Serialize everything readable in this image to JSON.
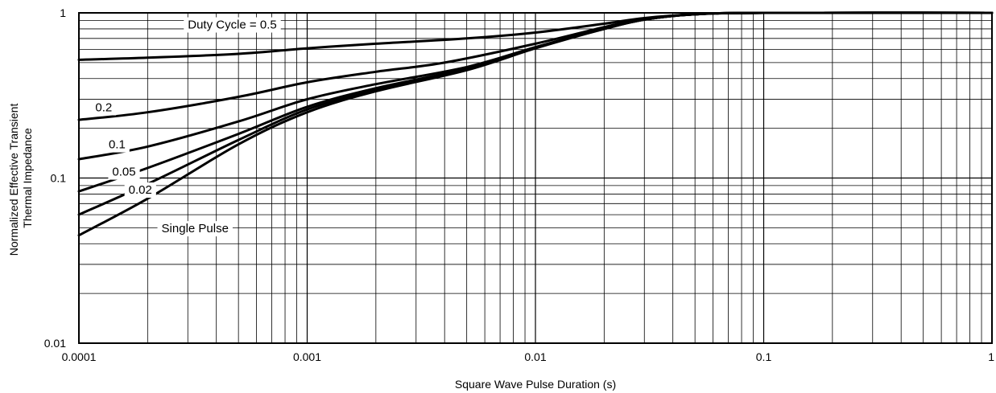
{
  "chart_data": {
    "type": "line",
    "xlabel": "Square Wave Pulse Duration (s)",
    "ylabel_lines": [
      "Normalized Effective Transient",
      "Thermal Impedance"
    ],
    "x_scale": "log",
    "y_scale": "log",
    "xlim": [
      0.0001,
      1
    ],
    "ylim": [
      0.01,
      1
    ],
    "x_ticks": [
      {
        "value": 0.0001,
        "label": "0.0001"
      },
      {
        "value": 0.001,
        "label": "0.001"
      },
      {
        "value": 0.01,
        "label": "0.01"
      },
      {
        "value": 0.1,
        "label": "0.1"
      },
      {
        "value": 1,
        "label": "1"
      }
    ],
    "y_ticks": [
      {
        "value": 0.01,
        "label": "0.01"
      },
      {
        "value": 0.1,
        "label": "0.1"
      },
      {
        "value": 1,
        "label": "1"
      }
    ],
    "grid": true,
    "series": [
      {
        "name": "Duty Cycle = 0.5",
        "points": [
          [
            0.0001,
            0.52
          ],
          [
            0.0002,
            0.535
          ],
          [
            0.0005,
            0.565
          ],
          [
            0.001,
            0.61
          ],
          [
            0.002,
            0.65
          ],
          [
            0.005,
            0.7
          ],
          [
            0.01,
            0.76
          ],
          [
            0.02,
            0.86
          ],
          [
            0.03,
            0.93
          ],
          [
            0.05,
            0.98
          ],
          [
            0.1,
            1.0
          ],
          [
            1,
            1.0
          ]
        ],
        "label_at": [
          0.0003,
          0.84
        ]
      },
      {
        "name": "0.2",
        "points": [
          [
            0.0001,
            0.225
          ],
          [
            0.0002,
            0.25
          ],
          [
            0.0005,
            0.31
          ],
          [
            0.001,
            0.38
          ],
          [
            0.002,
            0.44
          ],
          [
            0.004,
            0.5
          ],
          [
            0.01,
            0.65
          ],
          [
            0.02,
            0.82
          ],
          [
            0.03,
            0.92
          ],
          [
            0.05,
            0.98
          ],
          [
            0.1,
            1.0
          ],
          [
            1,
            1.0
          ]
        ],
        "label_at": [
          0.000118,
          0.265
        ]
      },
      {
        "name": "0.1",
        "points": [
          [
            0.0001,
            0.13
          ],
          [
            0.0002,
            0.155
          ],
          [
            0.0005,
            0.22
          ],
          [
            0.001,
            0.3
          ],
          [
            0.002,
            0.37
          ],
          [
            0.005,
            0.47
          ],
          [
            0.01,
            0.62
          ],
          [
            0.02,
            0.8
          ],
          [
            0.03,
            0.91
          ],
          [
            0.05,
            0.98
          ],
          [
            0.1,
            1.0
          ],
          [
            1,
            1.0
          ]
        ],
        "label_at": [
          0.000135,
          0.158
        ]
      },
      {
        "name": "0.05",
        "points": [
          [
            0.0001,
            0.083
          ],
          [
            0.0002,
            0.115
          ],
          [
            0.0005,
            0.185
          ],
          [
            0.001,
            0.27
          ],
          [
            0.002,
            0.35
          ],
          [
            0.005,
            0.46
          ],
          [
            0.01,
            0.62
          ],
          [
            0.02,
            0.8
          ],
          [
            0.03,
            0.91
          ],
          [
            0.05,
            0.98
          ],
          [
            0.1,
            1.0
          ],
          [
            1,
            1.0
          ]
        ],
        "label_at": [
          0.00014,
          0.108
        ]
      },
      {
        "name": "0.02",
        "points": [
          [
            0.0001,
            0.06
          ],
          [
            0.0002,
            0.092
          ],
          [
            0.0005,
            0.17
          ],
          [
            0.001,
            0.26
          ],
          [
            0.002,
            0.34
          ],
          [
            0.005,
            0.455
          ],
          [
            0.01,
            0.615
          ],
          [
            0.02,
            0.8
          ],
          [
            0.03,
            0.91
          ],
          [
            0.05,
            0.98
          ],
          [
            0.1,
            1.0
          ],
          [
            1,
            1.0
          ]
        ],
        "label_at": [
          0.000165,
          0.084
        ]
      },
      {
        "name": "Single Pulse",
        "points": [
          [
            0.0001,
            0.045
          ],
          [
            0.0002,
            0.075
          ],
          [
            0.0005,
            0.16
          ],
          [
            0.001,
            0.25
          ],
          [
            0.002,
            0.335
          ],
          [
            0.005,
            0.45
          ],
          [
            0.01,
            0.61
          ],
          [
            0.02,
            0.8
          ],
          [
            0.03,
            0.91
          ],
          [
            0.05,
            0.98
          ],
          [
            0.1,
            1.0
          ],
          [
            1,
            1.0
          ]
        ],
        "label_at": [
          0.00023,
          0.049
        ]
      }
    ]
  }
}
